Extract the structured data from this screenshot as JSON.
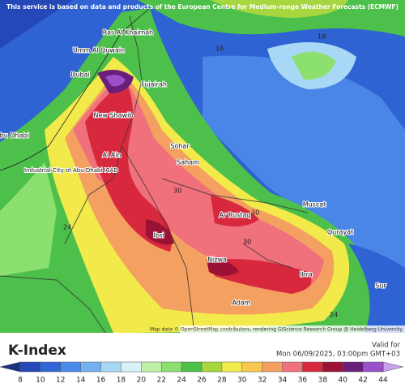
{
  "header": {
    "notice": "This service is based on data and products of the European Centre for Medium-range Weather Forecasts (ECMWF)"
  },
  "map": {
    "places": [
      "Ras Al Khaimah",
      "Umm Al Quwain",
      "Dubai",
      "Fujairah",
      "New Shawib",
      "Abu Dhabi",
      "Al Ain",
      "Industrial City of Abu Dhabi ICAD",
      "Sohar",
      "Saham",
      "Muscat",
      "Ar Rustaq",
      "Ibri",
      "Nizwa",
      "Ibra",
      "Qurayat",
      "Sur",
      "Adam"
    ],
    "contour_labels": [
      18,
      16,
      30,
      30,
      30,
      24,
      24
    ],
    "attribution": "Map data © OpenStreetMap contributors, rendering GIScience Research Group @ Heidelberg University"
  },
  "footer": {
    "title": "K-Index",
    "valid_label": "Valid for",
    "valid_time": "Mon 06/09/2025, 03:00pm GMT+03"
  },
  "colorbar": {
    "ticks": [
      8,
      10,
      12,
      14,
      16,
      18,
      20,
      22,
      24,
      26,
      28,
      30,
      32,
      34,
      36,
      38,
      40,
      42,
      44
    ],
    "colors": [
      "#1a2f86",
      "#2448b8",
      "#2f66d8",
      "#4a8ae8",
      "#72b0f0",
      "#a8d8f6",
      "#d8f2f8",
      "#c0f0a8",
      "#8ce070",
      "#4cc04a",
      "#a8d640",
      "#f2ea4a",
      "#f8c850",
      "#f4a060",
      "#f0707c",
      "#d8283e",
      "#9c1234",
      "#6a1e7a",
      "#9a50c8",
      "#c8a0ee"
    ]
  }
}
